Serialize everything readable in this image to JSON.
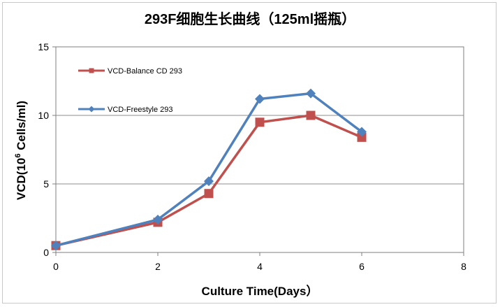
{
  "chart_data": {
    "type": "line",
    "title": "293F细胞生长曲线（125ml摇瓶）",
    "xlabel": "Culture Time(Days）",
    "ylabel_prefix": "VCD(10",
    "ylabel_sup": "6",
    "ylabel_suffix": " Cells/ml)",
    "xlim": [
      0,
      8
    ],
    "ylim": [
      0,
      15
    ],
    "xticks": [
      0,
      2,
      4,
      6,
      8
    ],
    "yticks": [
      0,
      5,
      10,
      15
    ],
    "xtick_labels": [
      "0",
      "2",
      "4",
      "6",
      "8"
    ],
    "ytick_labels": [
      "0",
      "5",
      "10",
      "15"
    ],
    "grid": "horizontal",
    "legend_position": "top-left",
    "series": [
      {
        "name": "VCD-Balance CD 293",
        "color": "#c0504d",
        "marker": "square",
        "x": [
          0,
          2,
          3,
          4,
          5,
          6
        ],
        "y": [
          0.5,
          2.2,
          4.3,
          9.5,
          10.0,
          8.4
        ]
      },
      {
        "name": "VCD-Freestyle 293",
        "color": "#4f81bd",
        "marker": "diamond",
        "x": [
          0,
          2,
          3,
          4,
          5,
          6
        ],
        "y": [
          0.5,
          2.4,
          5.2,
          11.2,
          11.6,
          8.8
        ]
      }
    ]
  }
}
